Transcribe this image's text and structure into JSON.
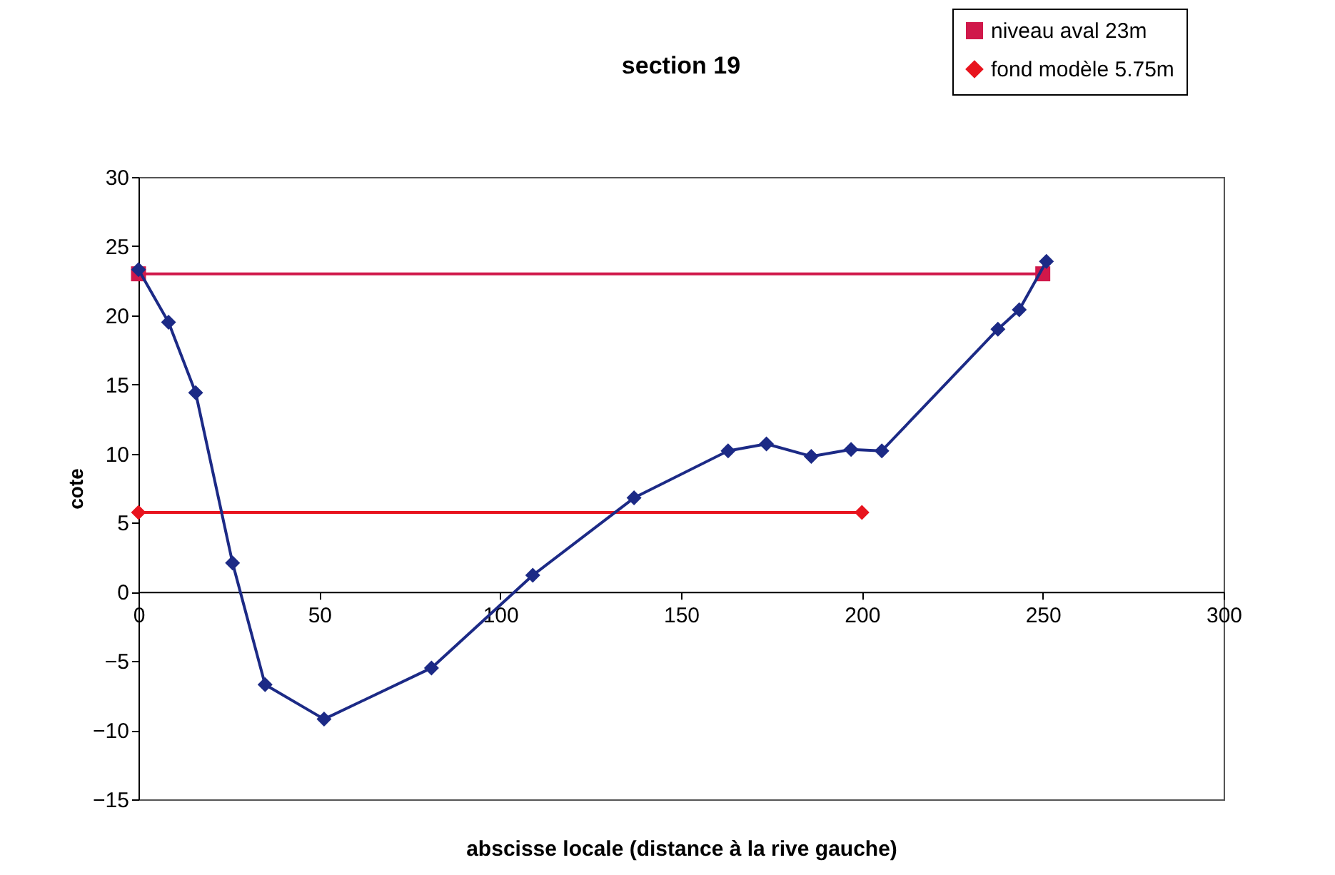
{
  "chart_data": {
    "type": "line",
    "title": "section 19",
    "xlabel": "abscisse locale (distance à la rive gauche)",
    "ylabel": "cote",
    "xlim": [
      0,
      300
    ],
    "xticks": [
      0,
      50,
      100,
      150,
      200,
      250,
      300
    ],
    "ylim": [
      -15,
      30
    ],
    "yticks": [
      -15,
      -10,
      -5,
      0,
      5,
      10,
      15,
      20,
      25,
      30
    ],
    "grid": false,
    "legend": "top right",
    "marker": "diamond",
    "line_style": "solid",
    "series": [
      {
        "color": "#1c2a86",
        "x": [
          0,
          8.3,
          15.8,
          26,
          35,
          51.3,
          81,
          109,
          137,
          163,
          173.6,
          186,
          197,
          205.5,
          237.6,
          243.5,
          251
        ],
        "values": [
          23.3,
          19.5,
          14.4,
          2.1,
          -6.7,
          -9.2,
          -5.5,
          1.2,
          6.8,
          10.2,
          10.7,
          9.8,
          10.3,
          10.2,
          19,
          20.4,
          23.9
        ]
      },
      {
        "name": "niveau aval 23m",
        "color": "#d0184a",
        "marker": "square",
        "x": [
          0,
          250
        ],
        "values": [
          23,
          23
        ]
      },
      {
        "name": "fond modèle 5.75m",
        "color": "#e8141e",
        "marker": "diamond",
        "x": [
          0,
          200
        ],
        "values": [
          5.75,
          5.75
        ]
      }
    ]
  }
}
